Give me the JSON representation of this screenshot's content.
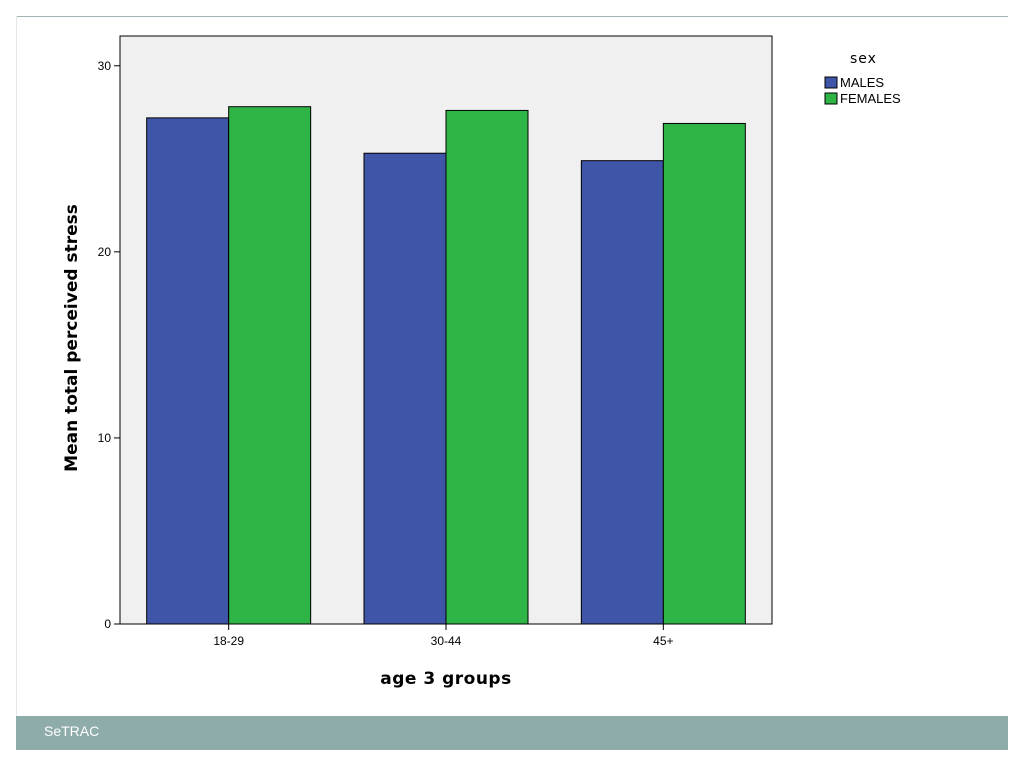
{
  "footer": {
    "brand": "SeTRAC"
  },
  "colors": {
    "males": "#3f55a8",
    "females": "#2eb546",
    "plot_background": "#f0f0f0",
    "footer_bar": "#8dacaa"
  },
  "chart_data": {
    "type": "bar",
    "title": "",
    "xlabel": "age 3 groups",
    "ylabel": "Mean total perceived stress",
    "categories": [
      "18-29",
      "30-44",
      "45+"
    ],
    "ylim": [
      0,
      31.6
    ],
    "yticks": [
      0,
      10,
      20,
      30
    ],
    "grid": false,
    "legend": {
      "title": "sex",
      "position": "top-right outside"
    },
    "series": [
      {
        "name": "MALES",
        "color": "#3f55a8",
        "values": [
          27.2,
          25.3,
          24.9
        ]
      },
      {
        "name": "FEMALES",
        "color": "#2eb546",
        "values": [
          27.8,
          27.6,
          26.9
        ]
      }
    ]
  }
}
